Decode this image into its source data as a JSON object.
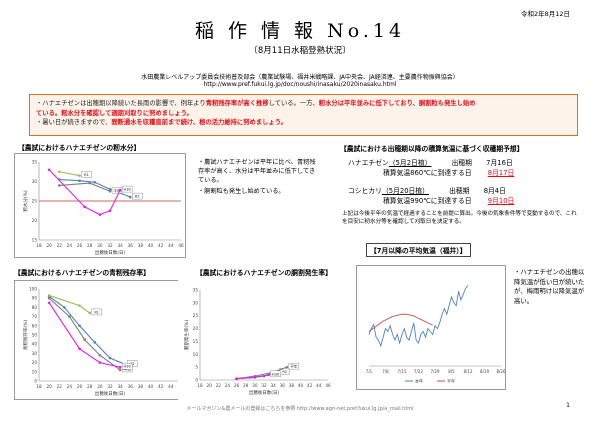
{
  "date": "令和2年8月12日",
  "title": "稲 作 情 報 No.14",
  "subtitle": "〔8月11日水稲登熟状況〕",
  "org": "水田農業レベルアップ委員会技術普及部会（農業試験場、福井米戦略課、JA中央会、JA経済連、主要農作物振興協会）",
  "url": "http://www.pref.fukui.lg.jp/doc/noushi/inasaku/2020inasaku.html",
  "alert": {
    "l1_a": "・ハナエチゼンは出穂期以降続いた長雨の影響で、例年より",
    "l1_b": "青籾残存率が高く推移",
    "l1_c": "している。一方、",
    "l1_d": "籾水分は平年並みに低下しており、胴割粒も発生し始め",
    "l2_a": "ている。籾水分を確認して適期刈取りに努めましょう。",
    "l3_a": "・暑い日が続きますので、",
    "l3_b": "間断通水を収穫直前まで続け、根の活力維持に努めましょう。"
  },
  "sections": {
    "moisture": "【農試におけるハナエチゼンの籾水分】",
    "green": "【農試におけるハナエチゼンの青籾残存率】",
    "crack": "【農試におけるハナエチゼンの胴割発生率】",
    "harvest": "【農試における出穂期以降の積算気温に基づく収穫期予想】",
    "temp": "【7月以降の平均気温（福井）】"
  },
  "moisture_notes": [
    "・農試ハナエチゼンは平年に比べ、青籾残存率が高く、水分は平年並みに低下してきている。",
    "・胴割粒も発生し始めている。"
  ],
  "harvest": {
    "r1_name": "ハナエチゼン",
    "r1_plant": "（5月2日植）",
    "r1_head_label": "出穂期",
    "r1_head_date": "7月16日",
    "r1_cum_label": "積算気温860℃に到達する日",
    "r1_cum_date": "8月17日",
    "r2_name": "コシヒカリ",
    "r2_plant": "（5月20日植）",
    "r2_head_label": "出穂期",
    "r2_head_date": "8月4日",
    "r2_cum_label": "積算気温990℃に到達する日",
    "r2_cum_date": "9月10日",
    "note": "上記は今後平年の気温で経過することを前提に算出。今後の気象条件等で変動するので、これを目安に籾水分等を確認して刈取日を決定する。"
  },
  "temp_note": "・ハナエチゼンの出穂以降気温が低い日が続いたが、梅雨明け以降気温が高い。",
  "footer": "メールマガジン&農メールの登録はこちらを参照  http://www.agri-net.pref.fukui.lg.jp/a_mail.html",
  "page_number": "1",
  "colors": {
    "alert_border": "#e46c0a",
    "red": "#e0101a",
    "blue": "#4f81bd",
    "green": "#9bbb59",
    "magenta": "#e020e0",
    "grey": "#7f7f7f"
  },
  "chart_data": [
    {
      "type": "line",
      "title": "",
      "xlabel": "出穂後日数(日)",
      "ylabel": "籾水分(%)",
      "xlim": [
        18,
        46
      ],
      "ylim": [
        15,
        35
      ],
      "xticks": [
        18,
        20,
        22,
        24,
        26,
        28,
        30,
        32,
        34,
        36,
        38,
        40,
        42,
        44,
        46
      ],
      "yticks": [
        15,
        20,
        25,
        30,
        35
      ],
      "series": [
        {
          "name": "R2",
          "color": "#4f81bd",
          "x": [
            22,
            26,
            29,
            32,
            36
          ],
          "y": [
            30.5,
            30.2,
            29.8,
            28.0,
            26.0
          ]
        },
        {
          "name": "平年",
          "color": "#7f7f7f",
          "x": [
            22,
            28,
            32
          ],
          "y": [
            29.0,
            29.6,
            27.5
          ]
        },
        {
          "name": "R1",
          "color": "#9bbb59",
          "x": [
            22,
            26
          ],
          "y": [
            32.5,
            31.5
          ]
        },
        {
          "name": "H30",
          "color": "#e020e0",
          "x": [
            20,
            27,
            30,
            32,
            34
          ],
          "y": [
            33.0,
            23.5,
            21.5,
            22.5,
            27.8
          ]
        }
      ],
      "hline": {
        "y": 25,
        "color": "#c0392b"
      }
    },
    {
      "type": "line",
      "title": "",
      "xlabel": "出穂後日数(日)",
      "ylabel": "青籾残存率(%)",
      "xlim": [
        18,
        46
      ],
      "ylim": [
        0,
        100
      ],
      "xticks": [
        18,
        20,
        22,
        24,
        26,
        28,
        30,
        32,
        34,
        36,
        38,
        40,
        42,
        44,
        46
      ],
      "yticks": [
        0,
        10,
        20,
        30,
        40,
        50,
        60,
        70,
        80,
        90,
        100
      ],
      "series": [
        {
          "name": "R2",
          "color": "#4f81bd",
          "x": [
            20,
            23,
            26,
            29,
            32,
            35
          ],
          "y": [
            92,
            80,
            60,
            42,
            25,
            18
          ]
        },
        {
          "name": "平年",
          "color": "#7f7f7f",
          "x": [
            20,
            24,
            27,
            30,
            34
          ],
          "y": [
            90,
            70,
            45,
            28,
            12
          ]
        },
        {
          "name": "R1",
          "color": "#9bbb59",
          "x": [
            20,
            26,
            28
          ],
          "y": [
            93,
            82,
            74
          ]
        },
        {
          "name": "H30",
          "color": "#e020e0",
          "x": [
            20,
            26,
            30,
            34
          ],
          "y": [
            85,
            35,
            20,
            15
          ]
        }
      ]
    },
    {
      "type": "line",
      "title": "",
      "xlabel": "出穂後日数(日)",
      "ylabel": "胴割発生率(%)",
      "xlim": [
        18,
        46
      ],
      "ylim": [
        0,
        35
      ],
      "xticks": [
        18,
        20,
        22,
        24,
        26,
        28,
        30,
        32,
        34,
        36,
        38,
        40,
        42,
        44,
        46
      ],
      "yticks": [
        0,
        5,
        10,
        15,
        20,
        25,
        30,
        35
      ],
      "series": [
        {
          "name": "R2",
          "color": "#4f81bd",
          "x": [
            26,
            29,
            32,
            35
          ],
          "y": [
            0.5,
            1.0,
            1.5,
            3.0
          ]
        },
        {
          "name": "平年",
          "color": "#7f7f7f",
          "x": [
            26,
            30,
            34,
            37
          ],
          "y": [
            0.5,
            1.5,
            3.0,
            5.0
          ]
        },
        {
          "name": "H30",
          "color": "#e020e0",
          "x": [
            26,
            30,
            33
          ],
          "y": [
            0.5,
            1.0,
            2.0
          ]
        }
      ]
    },
    {
      "type": "line",
      "title": "",
      "xlabel": "",
      "ylabel": "",
      "xlim": [
        0,
        56
      ],
      "ylim": [
        18,
        34
      ],
      "xticks": [
        "7/1",
        "7/8",
        "7/15",
        "7/22",
        "7/29",
        "8/5",
        "8/12",
        "8/19",
        "8/26"
      ],
      "series": [
        {
          "name": "本年",
          "color": "#4f81bd",
          "y": [
            23.5,
            24.5,
            25.2,
            23.0,
            22.5,
            21.5,
            23.0,
            24.5,
            24.0,
            25.0,
            23.5,
            22.5,
            23.5,
            22.0,
            23.5,
            24.5,
            23.0,
            22.5,
            24.0,
            25.5,
            22.5,
            22.0,
            23.5,
            24.0,
            23.0,
            24.5,
            24.0,
            23.5,
            25.0,
            24.5,
            25.5,
            27.0,
            28.0,
            27.0,
            28.5,
            30.0,
            29.0,
            28.5,
            31.0,
            29.5,
            30.5,
            31.5,
            32.0
          ]
        },
        {
          "name": "平年",
          "color": "#c0504d",
          "y": [
            24.0,
            24.3,
            24.6,
            24.9,
            25.2,
            25.5,
            25.8,
            26.0,
            26.2,
            26.4,
            26.6,
            26.7,
            26.8,
            26.9,
            27.0,
            27.0,
            27.0,
            26.9,
            26.8,
            26.7,
            26.5,
            26.3,
            26.1,
            25.9,
            25.7,
            25.5,
            25.3,
            25.1
          ]
        }
      ]
    }
  ]
}
